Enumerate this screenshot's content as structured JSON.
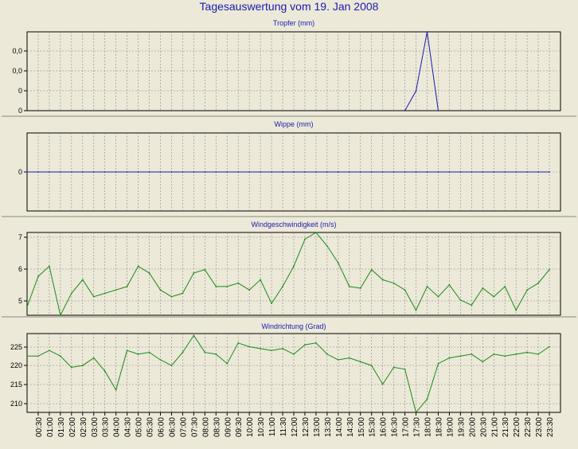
{
  "title": "Tagesauswertung vom 19. Jan 2008",
  "colors": {
    "background": "#ece9d8",
    "title": "#1a1ab0",
    "rain_line": "#1a1ab0",
    "wind_line": "#1a8a1a",
    "grid": "#888888",
    "separator": "#aaa99a"
  },
  "x_labels": [
    "00:30",
    "01:00",
    "01:30",
    "02:00",
    "02:30",
    "03:00",
    "03:30",
    "04:00",
    "04:30",
    "05:00",
    "05:30",
    "06:00",
    "06:30",
    "07:00",
    "07:30",
    "08:00",
    "08:30",
    "09:00",
    "09:30",
    "10:00",
    "10:30",
    "11:00",
    "11:30",
    "12:00",
    "12:30",
    "13:00",
    "13:30",
    "14:00",
    "14:30",
    "15:00",
    "15:30",
    "16:00",
    "16:30",
    "17:00",
    "17:30",
    "18:00",
    "18:30",
    "19:00",
    "19:30",
    "20:00",
    "20:30",
    "21:00",
    "21:30",
    "22:00",
    "22:30",
    "23:00",
    "23:30"
  ],
  "chart_data": [
    {
      "type": "line",
      "title": "Tropfer (mm)",
      "yticks": [
        "0,0",
        "0,0",
        "0",
        "0"
      ],
      "ylim": [
        0,
        1
      ],
      "color": "#1a1ab0",
      "x_start": "00:00",
      "x_step_minutes": 30,
      "values": [
        null,
        null,
        null,
        null,
        null,
        null,
        null,
        null,
        null,
        null,
        null,
        null,
        null,
        null,
        null,
        null,
        null,
        null,
        null,
        null,
        null,
        null,
        null,
        null,
        null,
        null,
        null,
        null,
        null,
        null,
        null,
        null,
        null,
        null,
        0,
        0.25,
        1,
        0,
        null,
        null,
        null,
        null,
        null,
        null,
        null,
        null,
        null,
        null
      ]
    },
    {
      "type": "line",
      "title": "Wippe (mm)",
      "yticks": [
        "0"
      ],
      "ylim": [
        -1,
        1
      ],
      "color": "#1a1ab0",
      "x_start": "00:00",
      "x_step_minutes": 30,
      "values": [
        0,
        0,
        0,
        0,
        0,
        0,
        0,
        0,
        0,
        0,
        0,
        0,
        0,
        0,
        0,
        0,
        0,
        0,
        0,
        0,
        0,
        0,
        0,
        0,
        0,
        0,
        0,
        0,
        0,
        0,
        0,
        0,
        0,
        0,
        0,
        0,
        0,
        0,
        0,
        0,
        0,
        0,
        0,
        0,
        0,
        0,
        0,
        0
      ]
    },
    {
      "type": "line",
      "title": "Windgeschwindigkeit (m/s)",
      "yticks": [
        "7",
        "6",
        "5"
      ],
      "ylim": [
        4.65,
        7.1
      ],
      "color": "#1a8a1a",
      "x_start": "00:00",
      "x_step_minutes": 30,
      "values": [
        4.9,
        5.8,
        6.1,
        4.65,
        5.3,
        5.7,
        5.2,
        5.3,
        5.4,
        5.5,
        6.1,
        5.9,
        5.4,
        5.2,
        5.3,
        5.9,
        6.0,
        5.5,
        5.5,
        5.6,
        5.4,
        5.7,
        5.0,
        5.5,
        6.1,
        6.9,
        7.1,
        6.7,
        6.2,
        5.5,
        5.45,
        6.0,
        5.7,
        5.6,
        5.4,
        4.8,
        5.5,
        5.2,
        5.55,
        5.1,
        4.95,
        5.45,
        5.2,
        5.5,
        4.8,
        5.4,
        5.6,
        6.0
      ]
    },
    {
      "type": "line",
      "title": "Windrichtung (Grad)",
      "yticks": [
        "225",
        "220",
        "215",
        "210"
      ],
      "ylim": [
        207,
        228
      ],
      "color": "#1a8a1a",
      "x_start": "00:00",
      "x_step_minutes": 30,
      "values": [
        222,
        222,
        223.5,
        222,
        219,
        219.5,
        221.5,
        218,
        213,
        223.5,
        222.5,
        223,
        221,
        219.5,
        223,
        227.5,
        223,
        222.5,
        220,
        225.5,
        224.5,
        224,
        223.5,
        224,
        222.5,
        225,
        225.5,
        222.5,
        221,
        221.5,
        220.5,
        219.5,
        214.5,
        219,
        218.5,
        207,
        210.5,
        220,
        221.5,
        222,
        222.5,
        220.5,
        222.5,
        222,
        222.5,
        223,
        222.5,
        224.5
      ]
    }
  ]
}
